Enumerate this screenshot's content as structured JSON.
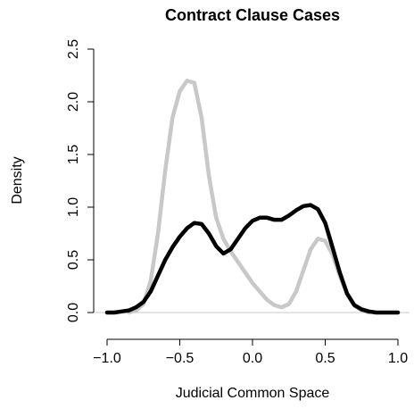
{
  "chart_data": {
    "type": "line",
    "title": "Contract Clause Cases",
    "xlabel": "Judicial Common Space",
    "ylabel": "Density",
    "x": [
      -1.0,
      -0.95,
      -0.9,
      -0.85,
      -0.8,
      -0.75,
      -0.7,
      -0.65,
      -0.6,
      -0.55,
      -0.5,
      -0.45,
      -0.4,
      -0.35,
      -0.3,
      -0.25,
      -0.2,
      -0.15,
      -0.1,
      -0.05,
      0,
      0.05,
      0.1,
      0.15,
      0.2,
      0.25,
      0.3,
      0.35,
      0.4,
      0.45,
      0.5,
      0.55,
      0.6,
      0.65,
      0.7,
      0.75,
      0.8,
      0.85,
      0.9,
      0.95,
      1.0
    ],
    "series": [
      {
        "color": "#000000",
        "values": [
          0,
          0,
          0.01,
          0.02,
          0.05,
          0.1,
          0.2,
          0.35,
          0.5,
          0.62,
          0.72,
          0.8,
          0.85,
          0.84,
          0.75,
          0.63,
          0.56,
          0.6,
          0.7,
          0.8,
          0.87,
          0.9,
          0.9,
          0.88,
          0.88,
          0.92,
          0.97,
          1.01,
          1.02,
          0.98,
          0.85,
          0.62,
          0.38,
          0.18,
          0.07,
          0.03,
          0.01,
          0,
          0,
          0,
          0
        ]
      },
      {
        "color": "#c8c8c8",
        "values": [
          null,
          null,
          null,
          0,
          0.02,
          0.08,
          0.3,
          0.75,
          1.35,
          1.85,
          2.1,
          2.2,
          2.18,
          1.85,
          1.3,
          0.9,
          0.7,
          0.58,
          0.48,
          0.38,
          0.28,
          0.2,
          0.12,
          0.07,
          0.05,
          0.08,
          0.2,
          0.4,
          0.6,
          0.7,
          0.68,
          0.55,
          0.35,
          0.18,
          0.07,
          0.02,
          0,
          null,
          null,
          null,
          null
        ]
      }
    ],
    "xlim": [
      -1.0,
      1.0
    ],
    "xticks": [
      {
        "value": -1.0,
        "label": "−1.0"
      },
      {
        "value": -0.5,
        "label": "−0.5"
      },
      {
        "value": 0,
        "label": "0.0"
      },
      {
        "value": 0.5,
        "label": "0.5"
      },
      {
        "value": 1.0,
        "label": "1.0"
      }
    ],
    "ylim": [
      0,
      2.5
    ],
    "yticks": [
      {
        "value": 0,
        "label": "0.0"
      },
      {
        "value": 0.5,
        "label": "0.5"
      },
      {
        "value": 1.0,
        "label": "1.0"
      },
      {
        "value": 1.5,
        "label": "1.5"
      },
      {
        "value": 2.0,
        "label": "2.0"
      },
      {
        "value": 2.5,
        "label": "2.5"
      }
    ]
  }
}
